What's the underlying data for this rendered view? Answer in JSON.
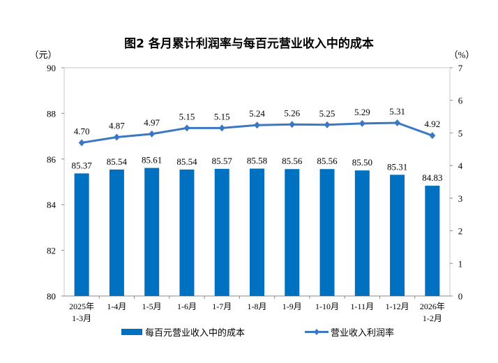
{
  "chart_data": {
    "type": "bar",
    "title": "图2  各月累计利润率与每百元营业收入中的成本",
    "left_unit": "（元）",
    "right_unit": "（%）",
    "categories": [
      [
        "2025年",
        "1-3月"
      ],
      [
        "1-4月"
      ],
      [
        "1-5月"
      ],
      [
        "1-6月"
      ],
      [
        "1-7月"
      ],
      [
        "1-8月"
      ],
      [
        "1-9月"
      ],
      [
        "1-10月"
      ],
      [
        "1-11月"
      ],
      [
        "1-12月"
      ],
      [
        "2026年",
        "1-2月"
      ]
    ],
    "left_axis": {
      "min": 80,
      "max": 90,
      "ticks": [
        "80",
        "82",
        "84",
        "86",
        "88",
        "90"
      ]
    },
    "right_axis": {
      "min": 0,
      "max": 7,
      "ticks": [
        "0",
        "1",
        "2",
        "3",
        "4",
        "5",
        "6",
        "7"
      ]
    },
    "series": [
      {
        "name": "每百元营业收入中的成本",
        "type": "bar",
        "axis": "left",
        "color": "#0070c0",
        "values": [
          85.37,
          85.54,
          85.61,
          85.54,
          85.57,
          85.58,
          85.56,
          85.56,
          85.5,
          85.31,
          84.83
        ],
        "labels": [
          "85.37",
          "85.54",
          "85.61",
          "85.54",
          "85.57",
          "85.58",
          "85.56",
          "85.56",
          "85.50",
          "85.31",
          "84.83"
        ]
      },
      {
        "name": "营业收入利润率",
        "type": "line",
        "axis": "right",
        "color": "#3a78c3",
        "values": [
          4.7,
          4.87,
          4.97,
          5.15,
          5.15,
          5.24,
          5.26,
          5.25,
          5.29,
          5.31,
          4.92
        ],
        "labels": [
          "4.70",
          "4.87",
          "4.97",
          "5.15",
          "5.15",
          "5.24",
          "5.26",
          "5.25",
          "5.29",
          "5.31",
          "4.92"
        ]
      }
    ],
    "legend": "bottom",
    "grid": false
  }
}
